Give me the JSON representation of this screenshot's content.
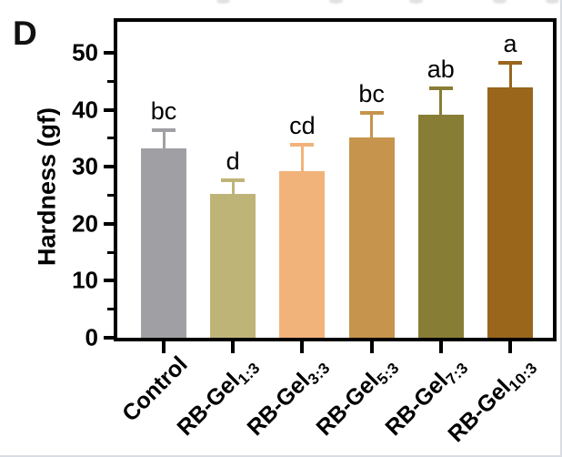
{
  "page": {
    "background": "#ffffff",
    "edge_border_color": "#d9dde3"
  },
  "panel_label": "D",
  "chart_data": {
    "type": "bar",
    "title": "",
    "xlabel": "",
    "ylabel": "Hardness (gf)",
    "ylim": [
      0,
      55.4
    ],
    "yticks_major": [
      0,
      10,
      20,
      30,
      40,
      50
    ],
    "yticks_minor": [
      5,
      15,
      25,
      35,
      45
    ],
    "grid": false,
    "legend": "none",
    "axis_color": "#000000",
    "categories": [
      {
        "base": "Control",
        "sub": ""
      },
      {
        "base": "RB-Gel",
        "sub": "1:3"
      },
      {
        "base": "RB-Gel",
        "sub": "3:3"
      },
      {
        "base": "RB-Gel",
        "sub": "5:3"
      },
      {
        "base": "RB-Gel",
        "sub": "7:3"
      },
      {
        "base": "RB-Gel",
        "sub": "10:3"
      }
    ],
    "values": [
      33.2,
      25.2,
      29.3,
      35.2,
      39.2,
      44.0
    ],
    "errors_plus": [
      3.2,
      2.4,
      4.6,
      4.3,
      4.5,
      4.3
    ],
    "significance_letters": [
      "bc",
      "d",
      "cd",
      "bc",
      "ab",
      "a"
    ],
    "bar_colors": [
      "#A09FA4",
      "#BFB478",
      "#F1B379",
      "#C6944C",
      "#887D35",
      "#99661C"
    ]
  }
}
